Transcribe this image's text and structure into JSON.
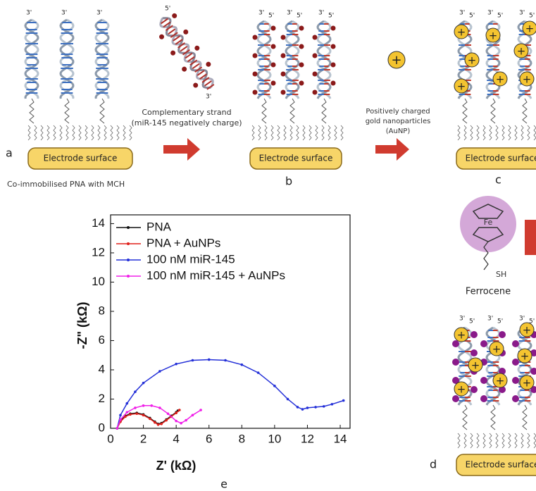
{
  "diagram": {
    "label_3prime": "3'",
    "label_5prime": "5'",
    "plus": "+",
    "electrode_label": "Electrode surface",
    "panel_a": "a",
    "panel_b": "b",
    "panel_c": "c",
    "panel_d": "d",
    "panel_e": "e",
    "caption_a": "Co-immobilised PNA with MCH",
    "complementary_line1": "Complementary strand",
    "complementary_line2": "(miR-145 negatively charge)",
    "aunp_line1": "Positively charged",
    "aunp_line2": "gold nanoparticles",
    "aunp_line3": "(AuNP)",
    "ferrocene": "Ferrocene",
    "fe": "Fe",
    "sh": "SH"
  },
  "chart_data": {
    "type": "line",
    "x_label": "Z' (kΩ)",
    "y_label": "-Z\" (kΩ)",
    "xlim": [
      0,
      14.6
    ],
    "ylim": [
      0,
      14.6
    ],
    "xticks": [
      0,
      2,
      4,
      6,
      8,
      10,
      12,
      14
    ],
    "yticks": [
      0,
      2,
      4,
      6,
      8,
      10,
      12,
      14
    ],
    "legend": "upper left",
    "series": [
      {
        "name": "PNA",
        "color": "#111111",
        "x": [
          0.4,
          0.6,
          0.9,
          1.2,
          1.6,
          2.0,
          2.4,
          2.7,
          2.9,
          3.1,
          3.4,
          3.7,
          4.0,
          4.1
        ],
        "values": [
          0,
          0.5,
          0.85,
          1.0,
          1.05,
          0.95,
          0.7,
          0.45,
          0.3,
          0.35,
          0.6,
          0.85,
          1.1,
          1.2
        ]
      },
      {
        "name": "PNA + AuNPs",
        "color": "#e0201c",
        "x": [
          0.4,
          0.6,
          0.9,
          1.2,
          1.6,
          2.0,
          2.4,
          2.7,
          2.9,
          3.1,
          3.4,
          3.7,
          4.0,
          4.2
        ],
        "values": [
          0,
          0.45,
          0.8,
          0.95,
          1.0,
          0.9,
          0.65,
          0.4,
          0.25,
          0.3,
          0.55,
          0.8,
          1.05,
          1.25
        ]
      },
      {
        "name": "100 nM miR-145",
        "color": "#2430d8",
        "x": [
          0.4,
          0.6,
          1,
          1.5,
          2,
          3,
          4,
          5,
          6,
          7,
          8,
          9,
          10,
          10.8,
          11.4,
          11.7,
          12,
          12.5,
          13,
          13.5,
          14.2
        ],
        "values": [
          0,
          0.9,
          1.7,
          2.5,
          3.1,
          3.9,
          4.4,
          4.65,
          4.7,
          4.65,
          4.35,
          3.8,
          2.9,
          2.0,
          1.45,
          1.3,
          1.4,
          1.45,
          1.5,
          1.65,
          1.9
        ]
      },
      {
        "name": "100 nM miR-145 + AuNPs",
        "color": "#f020e8",
        "x": [
          0.4,
          0.6,
          1,
          1.5,
          2,
          2.5,
          3,
          3.5,
          4,
          4.3,
          4.6,
          5,
          5.5
        ],
        "values": [
          0,
          0.6,
          1.1,
          1.4,
          1.55,
          1.55,
          1.4,
          1.0,
          0.5,
          0.35,
          0.55,
          0.9,
          1.25
        ]
      }
    ]
  }
}
